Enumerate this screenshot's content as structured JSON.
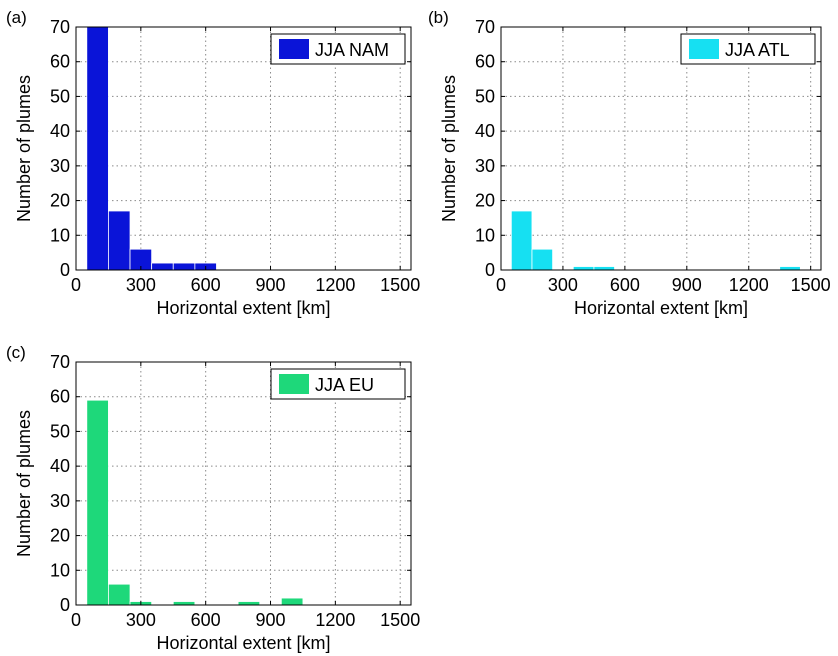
{
  "chart_data": [
    {
      "type": "bar",
      "panel_label": "(a)",
      "legend": "JJA NAM",
      "color": "#0a14d8",
      "xlabel": "Horizontal extent [km]",
      "ylabel": "Number of plumes",
      "xlim": [
        0,
        1550
      ],
      "ylim": [
        0,
        70
      ],
      "xticks": [
        "0",
        "300",
        "600",
        "900",
        "1200",
        "1500"
      ],
      "yticks": [
        "0",
        "10",
        "20",
        "30",
        "40",
        "50",
        "60",
        "70"
      ],
      "bin_width": 100,
      "grid": true,
      "legend_position": "top-right",
      "bins": [
        {
          "x": 100,
          "value": 70
        },
        {
          "x": 200,
          "value": 17
        },
        {
          "x": 300,
          "value": 6
        },
        {
          "x": 400,
          "value": 2
        },
        {
          "x": 500,
          "value": 2
        },
        {
          "x": 600,
          "value": 2
        }
      ]
    },
    {
      "type": "bar",
      "panel_label": "(b)",
      "legend": "JJA ATL",
      "color": "#16e0f2",
      "xlabel": "Horizontal extent [km]",
      "ylabel": "Number of plumes",
      "xlim": [
        0,
        1550
      ],
      "ylim": [
        0,
        70
      ],
      "xticks": [
        "0",
        "300",
        "600",
        "900",
        "1200",
        "1500"
      ],
      "yticks": [
        "0",
        "10",
        "20",
        "30",
        "40",
        "50",
        "60",
        "70"
      ],
      "bin_width": 100,
      "grid": true,
      "legend_position": "top-right",
      "bins": [
        {
          "x": 100,
          "value": 17
        },
        {
          "x": 200,
          "value": 6
        },
        {
          "x": 400,
          "value": 1
        },
        {
          "x": 500,
          "value": 1
        },
        {
          "x": 1400,
          "value": 1
        }
      ]
    },
    {
      "type": "bar",
      "panel_label": "(c)",
      "legend": "JJA EU",
      "color": "#1ed87a",
      "xlabel": "Horizontal extent [km]",
      "ylabel": "Number of plumes",
      "xlim": [
        0,
        1550
      ],
      "ylim": [
        0,
        70
      ],
      "xticks": [
        "0",
        "300",
        "600",
        "900",
        "1200",
        "1500"
      ],
      "yticks": [
        "0",
        "10",
        "20",
        "30",
        "40",
        "50",
        "60",
        "70"
      ],
      "bin_width": 100,
      "grid": true,
      "legend_position": "top-right",
      "bins": [
        {
          "x": 100,
          "value": 59
        },
        {
          "x": 200,
          "value": 6
        },
        {
          "x": 300,
          "value": 1
        },
        {
          "x": 500,
          "value": 1
        },
        {
          "x": 800,
          "value": 1
        },
        {
          "x": 1000,
          "value": 2
        }
      ]
    }
  ]
}
